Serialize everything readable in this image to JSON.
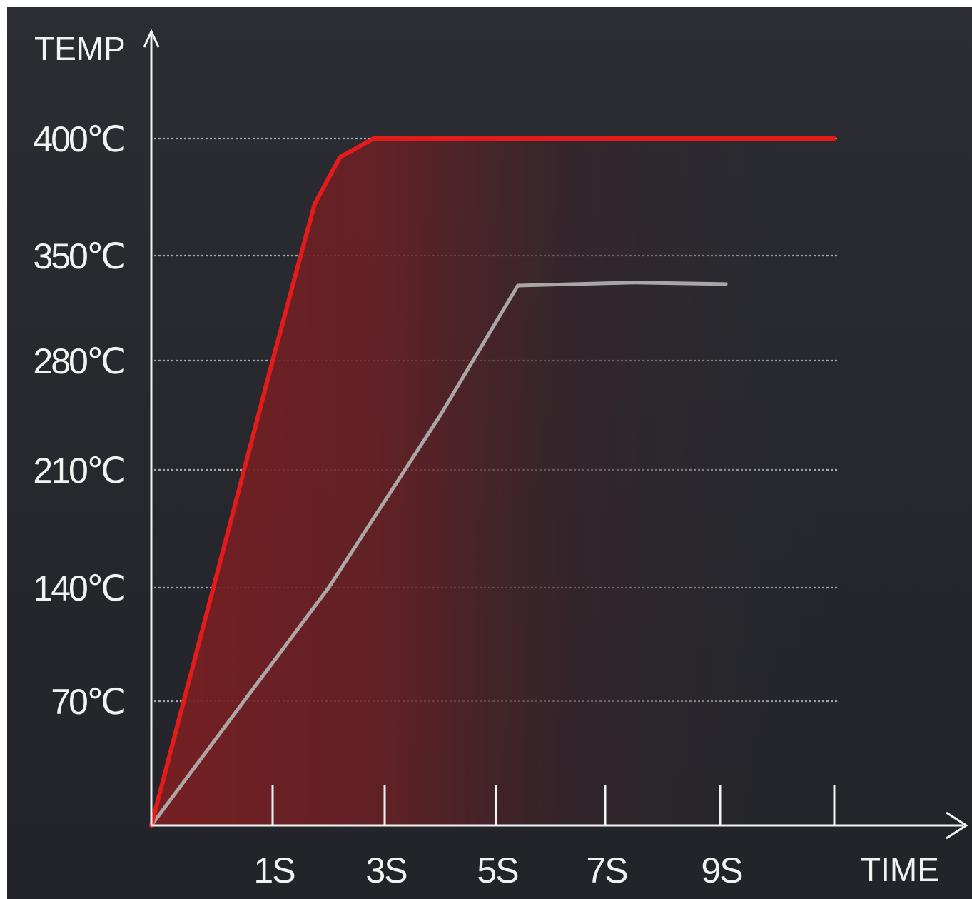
{
  "chart_data": {
    "type": "line",
    "xlabel": "TIME",
    "ylabel": "TEMP",
    "x_ticks": [
      {
        "label": "1S",
        "value": 1
      },
      {
        "label": "3S",
        "value": 3
      },
      {
        "label": "5S",
        "value": 5
      },
      {
        "label": "7S",
        "value": 7
      },
      {
        "label": "9S",
        "value": 9
      },
      {
        "label": "",
        "value": 11
      }
    ],
    "y_ticks": [
      {
        "label": "70℃",
        "value": 70
      },
      {
        "label": "140℃",
        "value": 140
      },
      {
        "label": "210℃",
        "value": 210
      },
      {
        "label": "280℃",
        "value": 280
      },
      {
        "label": "350℃",
        "value": 350
      },
      {
        "label": "400℃",
        "value": 400
      }
    ],
    "grid": true,
    "series": [
      {
        "color": "#e31b1b",
        "filled": true,
        "points": [
          [
            0,
            0
          ],
          [
            1.0,
            280
          ],
          [
            1.5,
            350
          ],
          [
            1.75,
            372
          ],
          [
            2.2,
            392
          ],
          [
            2.8,
            400
          ],
          [
            3.3,
            400
          ],
          [
            11,
            400
          ]
        ]
      },
      {
        "color": "#b5b5b5",
        "filled": false,
        "points": [
          [
            0,
            0
          ],
          [
            2.0,
            140
          ],
          [
            4.0,
            245
          ],
          [
            5.4,
            330
          ],
          [
            7.5,
            332
          ],
          [
            9.1,
            331
          ]
        ]
      }
    ]
  },
  "colors": {
    "background": "#2a2c32",
    "axis": "#f2f2f2",
    "grid": "#c8c8c8",
    "red_line": "#e31b1b",
    "gray_line": "#b5b5b5"
  }
}
